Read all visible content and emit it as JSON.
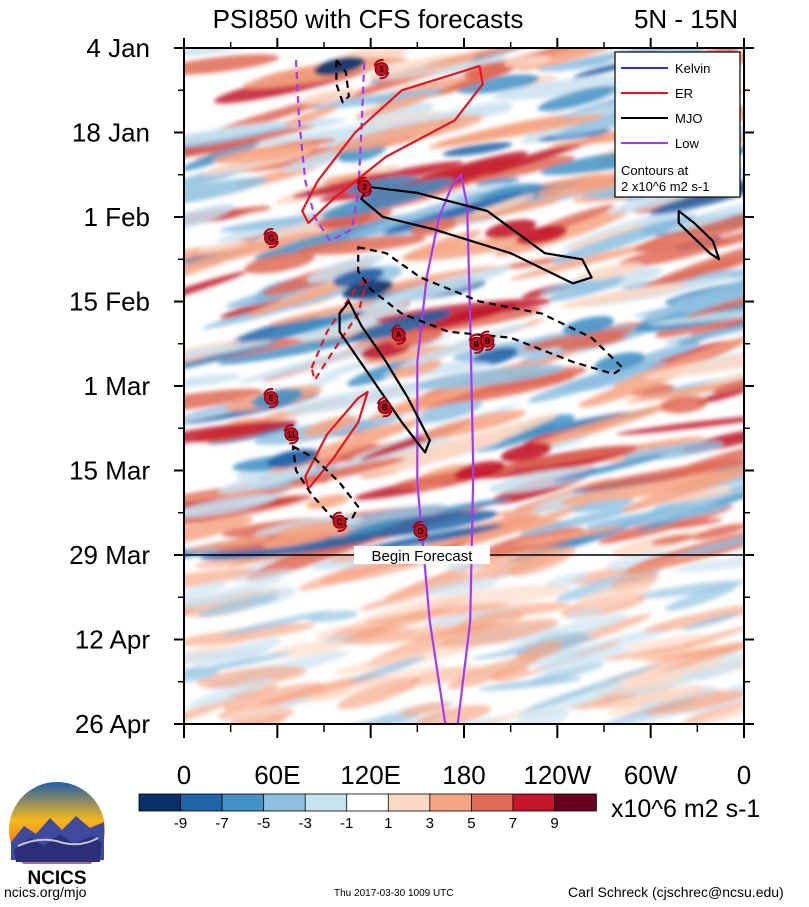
{
  "chart_data": {
    "type": "heatmap",
    "title": "PSI850 with CFS forecasts",
    "region": "5N - 15N",
    "x_ticks": [
      {
        "lon": 0,
        "label": "0"
      },
      {
        "lon": 60,
        "label": "60E"
      },
      {
        "lon": 120,
        "label": "120E"
      },
      {
        "lon": 180,
        "label": "180"
      },
      {
        "lon": 240,
        "label": "120W"
      },
      {
        "lon": 300,
        "label": "60W"
      },
      {
        "lon": 360,
        "label": "0"
      }
    ],
    "xlim": [
      0,
      360
    ],
    "y_ticks": [
      {
        "day": 0,
        "label": "4 Jan"
      },
      {
        "day": 14,
        "label": "18 Jan"
      },
      {
        "day": 28,
        "label": "1 Feb"
      },
      {
        "day": 42,
        "label": "15 Feb"
      },
      {
        "day": 56,
        "label": "1 Mar"
      },
      {
        "day": 70,
        "label": "15 Mar"
      },
      {
        "day": 84,
        "label": "29 Mar"
      },
      {
        "day": 98,
        "label": "12 Apr"
      },
      {
        "day": 112,
        "label": "26 Apr"
      }
    ],
    "ylim": [
      0,
      112
    ],
    "forecast_start_day": 84,
    "forecast_label": "Begin Forecast",
    "legend": {
      "position": "top-right",
      "entries": [
        {
          "name": "Kelvin",
          "color": "#3030d8",
          "dashed": false
        },
        {
          "name": "ER",
          "color": "#e8141e",
          "dashed": false
        },
        {
          "name": "MJO",
          "color": "#000000",
          "dashed": false
        },
        {
          "name": "Low",
          "color": "#a23cf0",
          "dashed": false
        }
      ],
      "note_line1": "Contours at",
      "note_line2": "2 x10^6 m2 s-1"
    },
    "colorbar": {
      "colors": [
        "#08306b",
        "#1f63a8",
        "#4292c6",
        "#8ec0e0",
        "#c9e2f0",
        "#ffffff",
        "#fdd8c4",
        "#f6a583",
        "#e06a55",
        "#c2162a",
        "#67001f"
      ],
      "tick_values": [
        -9,
        -7,
        -5,
        -3,
        -1,
        1,
        3,
        5,
        7,
        9
      ],
      "tick_labels": [
        "-9",
        "-7",
        "-5",
        "-3",
        "-1",
        "1",
        "3",
        "5",
        "7",
        "9"
      ],
      "units": "x10^6 m2 s-1"
    },
    "contours": [
      {
        "type": "Low",
        "dashed": true,
        "points": [
          [
            72,
            2
          ],
          [
            74,
            12
          ],
          [
            78,
            22
          ],
          [
            84,
            28
          ],
          [
            94,
            32
          ],
          [
            108,
            30
          ],
          [
            112,
            24
          ],
          [
            114,
            14
          ],
          [
            116,
            2
          ]
        ]
      },
      {
        "type": "Low",
        "dashed": false,
        "points": [
          [
            172,
            23
          ],
          [
            178,
            21
          ],
          [
            182,
            26
          ],
          [
            184,
            45
          ],
          [
            186,
            70
          ],
          [
            184,
            95
          ],
          [
            176,
            112
          ],
          [
            168,
            112
          ],
          [
            158,
            95
          ],
          [
            150,
            72
          ],
          [
            150,
            52
          ],
          [
            156,
            38
          ],
          [
            164,
            28
          ]
        ]
      },
      {
        "type": "ER",
        "dashed": false,
        "points": [
          [
            76,
            27
          ],
          [
            86,
            22
          ],
          [
            110,
            14
          ],
          [
            140,
            7
          ],
          [
            190,
            3
          ],
          [
            192,
            6
          ],
          [
            174,
            12
          ],
          [
            130,
            18
          ],
          [
            96,
            25
          ],
          [
            80,
            29
          ]
        ]
      },
      {
        "type": "ER",
        "dashed": false,
        "points": [
          [
            78,
            71
          ],
          [
            92,
            64
          ],
          [
            112,
            58
          ],
          [
            118,
            57
          ],
          [
            112,
            62
          ],
          [
            96,
            68
          ],
          [
            80,
            73
          ]
        ]
      },
      {
        "type": "ER",
        "dashed": true,
        "points": [
          [
            82,
            53
          ],
          [
            92,
            47
          ],
          [
            110,
            40
          ],
          [
            118,
            38
          ],
          [
            112,
            44
          ],
          [
            94,
            51
          ],
          [
            84,
            55
          ]
        ]
      },
      {
        "type": "MJO",
        "dashed": false,
        "points": [
          [
            118,
            23
          ],
          [
            150,
            24
          ],
          [
            195,
            27
          ],
          [
            232,
            34
          ],
          [
            256,
            35
          ],
          [
            262,
            38
          ],
          [
            250,
            39
          ],
          [
            210,
            34
          ],
          [
            160,
            30
          ],
          [
            128,
            28
          ],
          [
            114,
            25
          ]
        ]
      },
      {
        "type": "MJO",
        "dashed": false,
        "points": [
          [
            100,
            44
          ],
          [
            106,
            42
          ],
          [
            114,
            46
          ],
          [
            130,
            52
          ],
          [
            144,
            58
          ],
          [
            158,
            65
          ],
          [
            155,
            67
          ],
          [
            140,
            62
          ],
          [
            124,
            56
          ],
          [
            108,
            50
          ],
          [
            100,
            47
          ]
        ]
      },
      {
        "type": "MJO",
        "dashed": false,
        "points": [
          [
            318,
            27
          ],
          [
            328,
            29
          ],
          [
            340,
            32
          ],
          [
            344,
            35
          ],
          [
            338,
            34
          ],
          [
            326,
            31
          ],
          [
            318,
            29
          ]
        ]
      },
      {
        "type": "MJO",
        "dashed": true,
        "points": [
          [
            112,
            33
          ],
          [
            130,
            34
          ],
          [
            152,
            38
          ],
          [
            190,
            42
          ],
          [
            230,
            44
          ],
          [
            262,
            48
          ],
          [
            282,
            53
          ],
          [
            276,
            54
          ],
          [
            250,
            52
          ],
          [
            210,
            48
          ],
          [
            170,
            47
          ],
          [
            140,
            44
          ],
          [
            120,
            40
          ],
          [
            112,
            37
          ]
        ]
      },
      {
        "type": "MJO",
        "dashed": true,
        "points": [
          [
            98,
            2
          ],
          [
            104,
            4
          ],
          [
            106,
            8
          ],
          [
            102,
            9
          ],
          [
            98,
            6
          ]
        ]
      },
      {
        "type": "MJO",
        "dashed": true,
        "points": [
          [
            70,
            66
          ],
          [
            84,
            68
          ],
          [
            100,
            72
          ],
          [
            112,
            76
          ],
          [
            108,
            78
          ],
          [
            96,
            78
          ],
          [
            82,
            74
          ],
          [
            72,
            70
          ]
        ]
      }
    ],
    "storms": [
      {
        "label": "1",
        "lon": 127,
        "day": 3.5
      },
      {
        "label": "3",
        "lon": 116,
        "day": 23
      },
      {
        "label": "C",
        "lon": 56,
        "day": 31.5
      },
      {
        "label": "A",
        "lon": 138,
        "day": 47.5
      },
      {
        "label": "B",
        "lon": 188,
        "day": 49
      },
      {
        "label": "B",
        "lon": 195,
        "day": 48.5
      },
      {
        "label": "E",
        "lon": 56,
        "day": 58
      },
      {
        "label": "B",
        "lon": 129,
        "day": 59.5
      },
      {
        "label": "11",
        "lon": 69,
        "day": 64
      },
      {
        "label": "C",
        "lon": 100,
        "day": 78.5
      },
      {
        "label": "D",
        "lon": 152,
        "day": 80
      }
    ]
  },
  "logo": {
    "text": "NCICS"
  },
  "footer": {
    "url": "ncics.org/mjo",
    "timestamp": "Thu 2017-03-30 1009 UTC",
    "author": "Carl Schreck (cjschrec@ncsu.edu)"
  }
}
